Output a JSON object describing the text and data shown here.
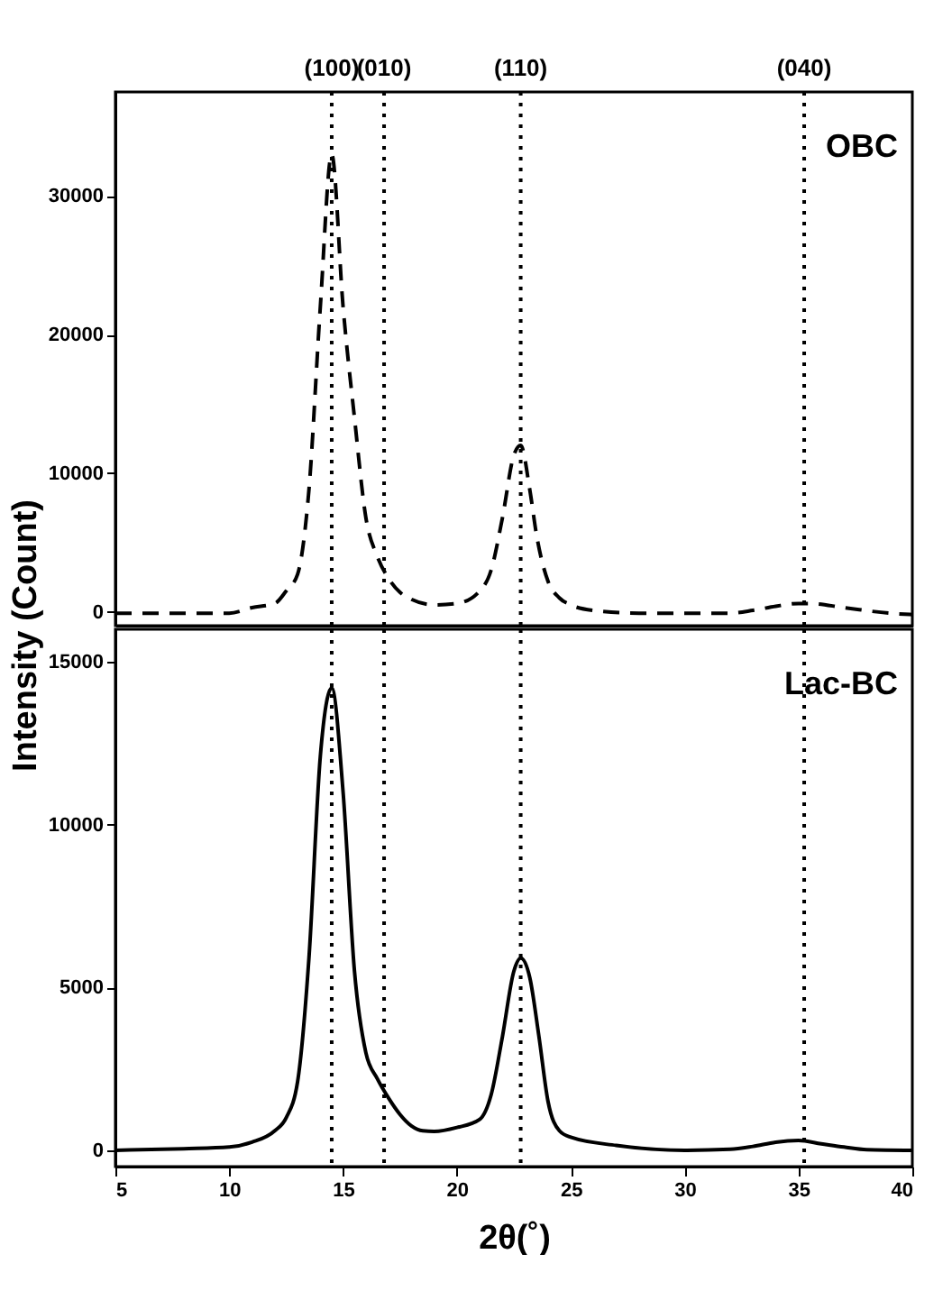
{
  "chart_data": [
    {
      "type": "line",
      "ylabel": "Intensity (Count)",
      "line_style": "dashed",
      "tick_labels": "y",
      "x": [
        5,
        7,
        9,
        10,
        11,
        12,
        12.5,
        13,
        13.5,
        14,
        14.5,
        15,
        15.5,
        16,
        16.5,
        17,
        17.5,
        18,
        19,
        20,
        21,
        21.5,
        22,
        22.5,
        22.8,
        23.2,
        23.5,
        24,
        24.5,
        25,
        26,
        28,
        30,
        32,
        33,
        34,
        35,
        35.5,
        37,
        39,
        40
      ],
      "series": [
        {
          "name": "OBC",
          "color": "#000000",
          "values": [
            -100,
            -100,
            -100,
            -100,
            300,
            600,
            1500,
            2700,
            8800,
            22000,
            33000,
            22000,
            14000,
            6800,
            4000,
            2400,
            1400,
            900,
            500,
            600,
            1500,
            3000,
            6800,
            11300,
            12000,
            8800,
            5500,
            2200,
            1000,
            500,
            100,
            -100,
            -100,
            -100,
            100,
            400,
            600,
            600,
            300,
            -100,
            -200
          ]
        }
      ],
      "annotations": [
        "(100)",
        "(010)",
        "(110)",
        "(040)"
      ],
      "xlim": [
        5,
        40
      ],
      "ylim": [
        -1000,
        37500
      ],
      "yticks": [
        0,
        10000,
        20000,
        30000
      ],
      "ref_lines": [
        {
          "axis": "x",
          "value": 14.5,
          "color": "#000000",
          "line_style": "dotted"
        },
        {
          "axis": "x",
          "value": 16.8,
          "color": "#000000",
          "line_style": "dotted"
        },
        {
          "axis": "x",
          "value": 22.8,
          "color": "#000000",
          "line_style": "dotted"
        },
        {
          "axis": "x",
          "value": 35.25,
          "color": "#000000",
          "line_style": "dotted"
        }
      ]
    },
    {
      "type": "line",
      "xlabel": "2θ(˚)",
      "line_style": "solid",
      "x": [
        5,
        8,
        10,
        11,
        12,
        12.5,
        13,
        13.5,
        14,
        14.5,
        15,
        15.5,
        16,
        16.5,
        17,
        17.5,
        18,
        18.5,
        19,
        20,
        21,
        21.5,
        22,
        22.5,
        22.8,
        23.2,
        23.6,
        24,
        24.5,
        25,
        27,
        30,
        32,
        33,
        34,
        35,
        36,
        37,
        38,
        40
      ],
      "series": [
        {
          "name": "Lac-BC",
          "color": "#000000",
          "values": [
            0,
            50,
            100,
            250,
            600,
            1000,
            2100,
            5900,
            12100,
            14200,
            11000,
            5500,
            3000,
            2200,
            1600,
            1100,
            750,
            600,
            580,
            700,
            950,
            1700,
            3500,
            5500,
            5900,
            5300,
            3500,
            1500,
            600,
            400,
            150,
            0,
            30,
            120,
            250,
            300,
            200,
            100,
            20,
            0
          ]
        }
      ],
      "xlim": [
        5,
        40
      ],
      "xticks": [
        5,
        10,
        15,
        20,
        25,
        30,
        35,
        40
      ],
      "ylim": [
        -500,
        16000
      ],
      "yticks": [
        0,
        5000,
        10000,
        15000
      ],
      "ref_lines": [
        {
          "axis": "x",
          "value": 14.5,
          "color": "#000000",
          "line_style": "dotted"
        },
        {
          "axis": "x",
          "value": 16.8,
          "color": "#000000",
          "line_style": "dotted"
        },
        {
          "axis": "x",
          "value": 22.8,
          "color": "#000000",
          "line_style": "dotted"
        },
        {
          "axis": "x",
          "value": 35.25,
          "color": "#000000",
          "line_style": "dotted"
        }
      ]
    }
  ]
}
